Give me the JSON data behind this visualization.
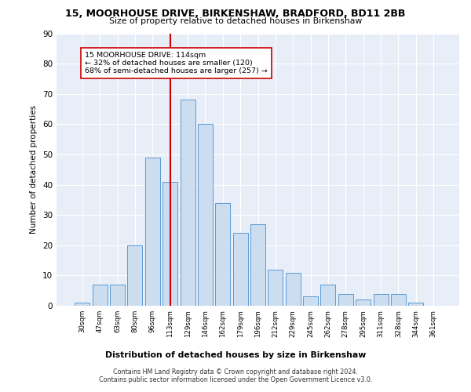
{
  "title1": "15, MOORHOUSE DRIVE, BIRKENSHAW, BRADFORD, BD11 2BB",
  "title2": "Size of property relative to detached houses in Birkenshaw",
  "xlabel": "Distribution of detached houses by size in Birkenshaw",
  "ylabel": "Number of detached properties",
  "categories": [
    "30sqm",
    "47sqm",
    "63sqm",
    "80sqm",
    "96sqm",
    "113sqm",
    "129sqm",
    "146sqm",
    "162sqm",
    "179sqm",
    "196sqm",
    "212sqm",
    "229sqm",
    "245sqm",
    "262sqm",
    "278sqm",
    "295sqm",
    "311sqm",
    "328sqm",
    "344sqm",
    "361sqm"
  ],
  "bar_heights": [
    1,
    7,
    7,
    20,
    49,
    41,
    68,
    60,
    34,
    24,
    27,
    12,
    11,
    3,
    7,
    4,
    2,
    4,
    4,
    1,
    0
  ],
  "bar_colors_face": "#ccddf0",
  "bar_colors_edge": "#5b9bd5",
  "vline_color": "#cc0000",
  "annotation_text": "15 MOORHOUSE DRIVE: 114sqm\n← 32% of detached houses are smaller (120)\n68% of semi-detached houses are larger (257) →",
  "annotation_box_color": "#ffffff",
  "annotation_box_edge": "#cc0000",
  "ylim": [
    0,
    90
  ],
  "yticks": [
    0,
    10,
    20,
    30,
    40,
    50,
    60,
    70,
    80,
    90
  ],
  "footer1": "Contains HM Land Registry data © Crown copyright and database right 2024.",
  "footer2": "Contains public sector information licensed under the Open Government Licence v3.0.",
  "bg_color": "#e8eef8",
  "grid_color": "#ffffff"
}
